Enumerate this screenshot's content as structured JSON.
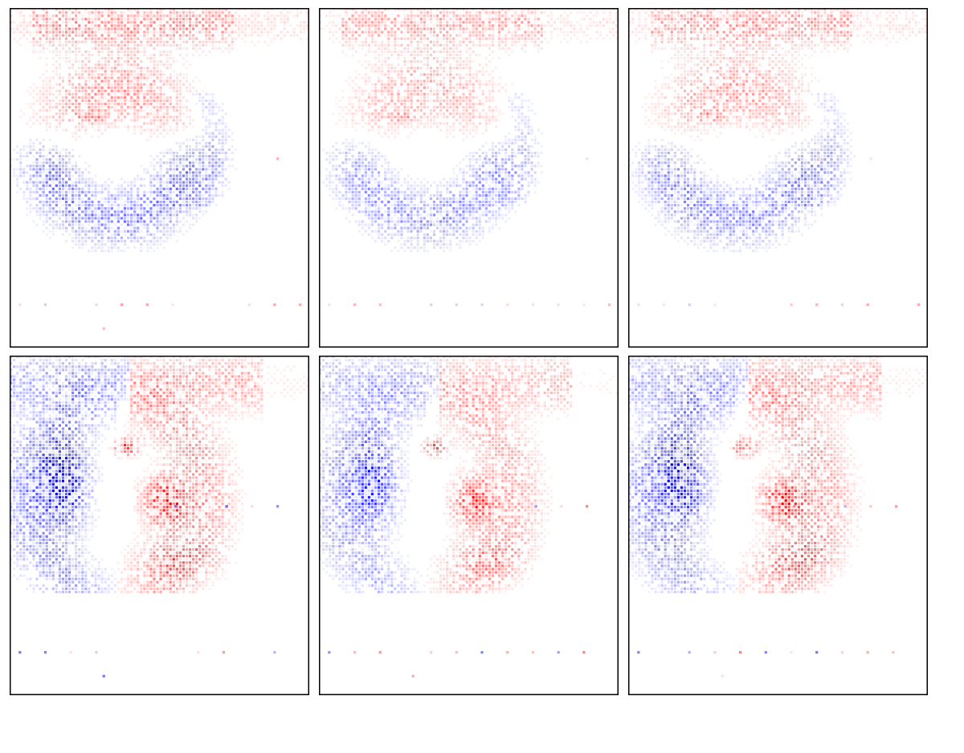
{
  "figure": {
    "rows": 2,
    "cols": 3
  },
  "chart_data": [
    {
      "type": "heatmap",
      "title": "",
      "xlabel": "",
      "ylabel": "",
      "colorscale": [
        "#0000ff",
        "#ffffff",
        "#ff0000"
      ],
      "value_range": [
        -1,
        1
      ],
      "grid_resolution": [
        92,
        104
      ],
      "amplitude": 0.55,
      "pattern": "red-upper-arc-blue-lower-ring",
      "axes_visible": false,
      "grid": false,
      "legend": "none"
    },
    {
      "type": "heatmap",
      "title": "",
      "xlabel": "",
      "ylabel": "",
      "colorscale": [
        "#0000ff",
        "#ffffff",
        "#ff0000"
      ],
      "value_range": [
        -1,
        1
      ],
      "grid_resolution": [
        92,
        104
      ],
      "amplitude": 0.45,
      "pattern": "red-upper-arc-blue-lower-ring",
      "axes_visible": false,
      "grid": false,
      "legend": "none"
    },
    {
      "type": "heatmap",
      "title": "",
      "xlabel": "",
      "ylabel": "",
      "colorscale": [
        "#0000ff",
        "#ffffff",
        "#ff0000"
      ],
      "value_range": [
        -1,
        1
      ],
      "grid_resolution": [
        92,
        104
      ],
      "amplitude": 0.5,
      "pattern": "red-upper-arc-blue-lower-ring",
      "axes_visible": false,
      "grid": false,
      "legend": "none"
    },
    {
      "type": "heatmap",
      "title": "",
      "xlabel": "",
      "ylabel": "",
      "colorscale": [
        "#0000ff",
        "#ffffff",
        "#ff0000"
      ],
      "value_range": [
        -1,
        1
      ],
      "grid_resolution": [
        92,
        104
      ],
      "amplitude": 0.85,
      "pattern": "blue-left-red-right-dipole",
      "axes_visible": false,
      "grid": false,
      "legend": "none"
    },
    {
      "type": "heatmap",
      "title": "",
      "xlabel": "",
      "ylabel": "",
      "colorscale": [
        "#0000ff",
        "#ffffff",
        "#ff0000"
      ],
      "value_range": [
        -1,
        1
      ],
      "grid_resolution": [
        92,
        104
      ],
      "amplitude": 0.7,
      "pattern": "blue-left-red-right-dipole",
      "axes_visible": false,
      "grid": false,
      "legend": "none"
    },
    {
      "type": "heatmap",
      "title": "",
      "xlabel": "",
      "ylabel": "",
      "colorscale": [
        "#0000ff",
        "#ffffff",
        "#ff0000"
      ],
      "value_range": [
        -1,
        1
      ],
      "grid_resolution": [
        92,
        104
      ],
      "amplitude": 0.8,
      "pattern": "blue-left-red-right-dipole",
      "axes_visible": false,
      "grid": false,
      "legend": "none"
    }
  ]
}
